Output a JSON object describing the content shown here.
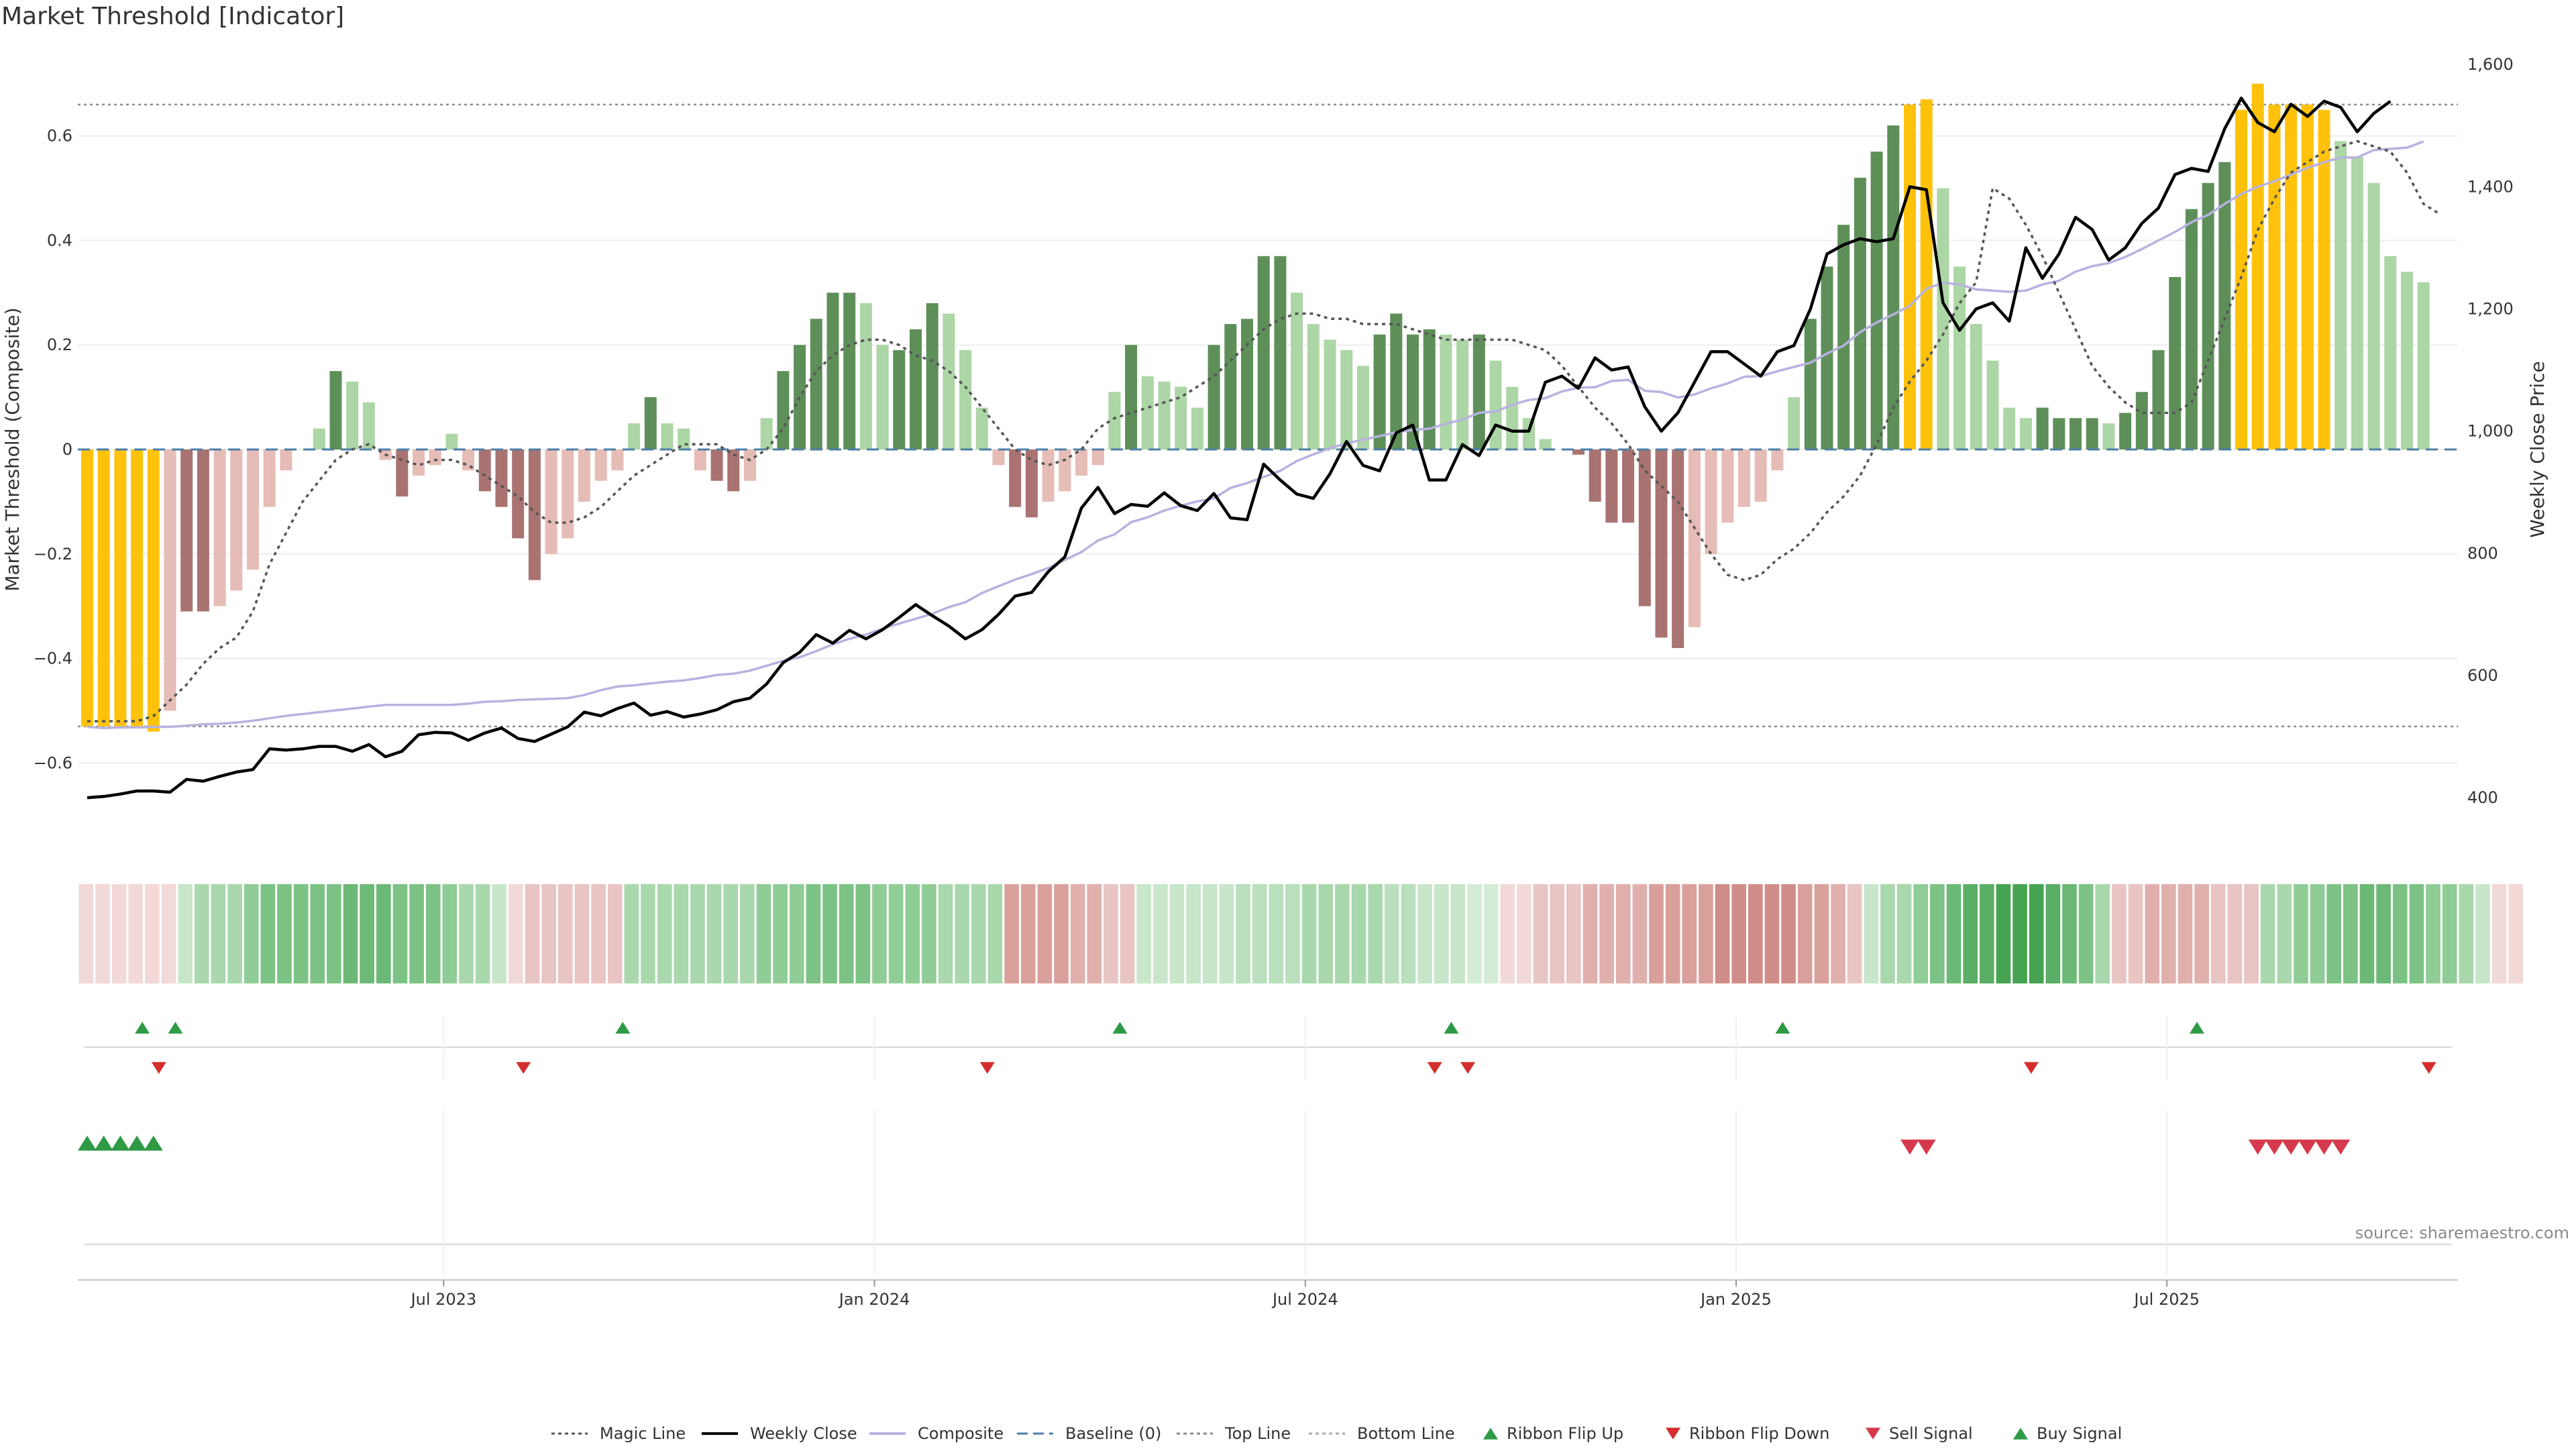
{
  "title": "Market Threshold [Indicator]",
  "source": "source: sharemaestro.com",
  "chart_data": {
    "type": "bar",
    "title": "Market Threshold [Indicator]",
    "ylabel_left": "Market Threshold (Composite)",
    "ylabel_right": "Weekly Close Price",
    "ylim_left": [
      -0.76,
      0.76
    ],
    "ylim_right": [
      320,
      1620
    ],
    "y_ticks_left": [
      0.6,
      0.4,
      0.2,
      0,
      -0.2,
      -0.4,
      -0.6
    ],
    "y_tick_labels_left": [
      "0.6",
      "0.4",
      "0.2",
      "0",
      "−0.2",
      "−0.4",
      "−0.6"
    ],
    "y_ticks_right": [
      1600,
      1400,
      1200,
      1000,
      800,
      600,
      400
    ],
    "y_tick_labels_right": [
      "1,600",
      "1,400",
      "1,200",
      "1,000",
      "800",
      "600",
      "400"
    ],
    "x_tick_labels": [
      "Jul 2023",
      "Jan 2024",
      "Jul 2024",
      "Jan 2025",
      "Jul 2025"
    ],
    "x_tick_weeks": [
      22,
      48,
      74,
      100,
      126
    ],
    "top_line": 0.66,
    "bottom_line": -0.53,
    "composite_bars": [
      -0.53,
      -0.53,
      -0.53,
      -0.53,
      -0.54,
      -0.5,
      -0.31,
      -0.31,
      -0.3,
      -0.27,
      -0.23,
      -0.11,
      -0.04,
      0,
      0.04,
      0.15,
      0.13,
      0.09,
      -0.02,
      -0.09,
      -0.05,
      -0.03,
      0.03,
      -0.04,
      -0.08,
      -0.11,
      -0.17,
      -0.25,
      -0.2,
      -0.17,
      -0.1,
      -0.06,
      -0.04,
      0.05,
      0.1,
      0.05,
      0.04,
      -0.04,
      -0.06,
      -0.08,
      -0.06,
      0.06,
      0.15,
      0.2,
      0.25,
      0.3,
      0.3,
      0.28,
      0.2,
      0.19,
      0.23,
      0.28,
      0.26,
      0.19,
      0.08,
      -0.03,
      -0.11,
      -0.13,
      -0.1,
      -0.08,
      -0.05,
      -0.03,
      0.11,
      0.2,
      0.14,
      0.13,
      0.12,
      0.08,
      0.2,
      0.24,
      0.25,
      0.37,
      0.37,
      0.3,
      0.24,
      0.21,
      0.19,
      0.16,
      0.22,
      0.26,
      0.22,
      0.23,
      0.22,
      0.21,
      0.22,
      0.17,
      0.12,
      0.06,
      0.02,
      0,
      -0.01,
      -0.1,
      -0.14,
      -0.14,
      -0.3,
      -0.36,
      -0.38,
      -0.34,
      -0.2,
      -0.14,
      -0.11,
      -0.1,
      -0.04,
      0.1,
      0.25,
      0.35,
      0.43,
      0.52,
      0.57,
      0.62,
      0.66,
      0.67,
      0.5,
      0.35,
      0.24,
      0.17,
      0.08,
      0.06,
      0.08,
      0.06,
      0.06,
      0.06,
      0.05,
      0.07,
      0.11,
      0.19,
      0.33,
      0.46,
      0.51,
      0.55,
      0.65,
      0.7,
      0.66,
      0.66,
      0.66,
      0.65,
      0.59,
      0.56,
      0.51,
      0.37,
      0.34,
      0.32
    ],
    "bar_state": [
      "y",
      "y",
      "y",
      "y",
      "y",
      "l",
      "d",
      "d",
      "l",
      "l",
      "l",
      "l",
      "l",
      "l",
      "l",
      "d",
      "l",
      "l",
      "l",
      "d",
      "l",
      "l",
      "l",
      "l",
      "d",
      "d",
      "d",
      "d",
      "l",
      "l",
      "l",
      "l",
      "l",
      "l",
      "d",
      "l",
      "l",
      "l",
      "d",
      "d",
      "l",
      "l",
      "d",
      "d",
      "d",
      "d",
      "d",
      "l",
      "l",
      "d",
      "d",
      "d",
      "l",
      "l",
      "l",
      "l",
      "d",
      "d",
      "l",
      "l",
      "l",
      "l",
      "l",
      "d",
      "l",
      "l",
      "l",
      "l",
      "d",
      "d",
      "d",
      "d",
      "d",
      "l",
      "l",
      "l",
      "l",
      "l",
      "d",
      "d",
      "d",
      "d",
      "l",
      "l",
      "d",
      "l",
      "l",
      "l",
      "l",
      "l",
      "d",
      "d",
      "d",
      "d",
      "d",
      "d",
      "d",
      "l",
      "l",
      "l",
      "l",
      "l",
      "l",
      "l",
      "d",
      "d",
      "d",
      "d",
      "d",
      "d",
      "y",
      "y",
      "l",
      "l",
      "l",
      "l",
      "l",
      "l",
      "d",
      "d",
      "d",
      "d",
      "l",
      "d",
      "d",
      "d",
      "d",
      "d",
      "d",
      "d",
      "y",
      "y",
      "y",
      "y",
      "y",
      "y",
      "l",
      "l",
      "l",
      "l",
      "l",
      "l"
    ],
    "weekly_close": [
      400,
      402,
      406,
      411,
      411,
      409,
      430,
      427,
      435,
      442,
      446,
      480,
      478,
      480,
      484,
      484,
      476,
      487,
      467,
      476,
      503,
      507,
      506,
      494,
      506,
      514,
      497,
      492,
      504,
      516,
      540,
      534,
      546,
      555,
      535,
      541,
      532,
      537,
      544,
      557,
      563,
      586,
      621,
      638,
      667,
      653,
      674,
      660,
      675,
      695,
      716,
      698,
      681,
      660,
      675,
      700,
      730,
      736,
      770,
      794,
      874,
      908,
      865,
      880,
      877,
      899,
      878,
      870,
      898,
      858,
      855,
      946,
      920,
      897,
      890,
      930,
      983,
      944,
      935,
      997,
      1010,
      920,
      920,
      978,
      960,
      1010,
      1000,
      1000,
      1080,
      1090,
      1070,
      1120,
      1100,
      1105,
      1040,
      1000,
      1030,
      1080,
      1130,
      1130,
      1110,
      1090,
      1130,
      1140,
      1200,
      1290,
      1305,
      1315,
      1310,
      1315,
      1400,
      1395,
      1210,
      1165,
      1200,
      1210,
      1180,
      1300,
      1250,
      1290,
      1350,
      1330,
      1280,
      1300,
      1340,
      1365,
      1420,
      1430,
      1425,
      1495,
      1545,
      1505,
      1490,
      1535,
      1515,
      1540,
      1530,
      1490,
      1520,
      1540
    ],
    "composite_line": [
      516,
      514,
      515,
      515,
      516,
      516,
      518,
      520,
      521,
      523,
      526,
      530,
      534,
      537,
      540,
      543,
      546,
      549,
      552,
      552,
      552,
      552,
      552,
      554,
      557,
      558,
      560,
      561,
      562,
      563,
      568,
      576,
      582,
      584,
      587,
      590,
      592,
      596,
      601,
      603,
      608,
      616,
      624,
      630,
      640,
      651,
      660,
      667,
      677,
      685,
      693,
      701,
      712,
      720,
      735,
      746,
      757,
      766,
      776,
      789,
      802,
      821,
      831,
      851,
      859,
      870,
      878,
      885,
      890,
      907,
      915,
      925,
      935,
      951,
      962,
      972,
      980,
      986,
      992,
      998,
      1002,
      1004,
      1012,
      1019,
      1030,
      1032,
      1043,
      1051,
      1054,
      1065,
      1071,
      1072,
      1082,
      1084,
      1066,
      1064,
      1055,
      1060,
      1070,
      1078,
      1089,
      1090,
      1098,
      1105,
      1112,
      1127,
      1140,
      1162,
      1178,
      1191,
      1205,
      1233,
      1243,
      1240,
      1232,
      1230,
      1228,
      1230,
      1240,
      1246,
      1261,
      1270,
      1275,
      1285,
      1298,
      1312,
      1326,
      1342,
      1354,
      1372,
      1388,
      1400,
      1409,
      1420,
      1431,
      1440,
      1448,
      1448,
      1460,
      1462,
      1464,
      1474
    ],
    "magic_line": [
      -0.52,
      -0.52,
      -0.52,
      -0.52,
      -0.51,
      -0.48,
      -0.45,
      -0.41,
      -0.38,
      -0.36,
      -0.31,
      -0.22,
      -0.16,
      -0.1,
      -0.06,
      -0.02,
      0,
      0.01,
      -0.01,
      -0.02,
      -0.03,
      -0.02,
      -0.02,
      -0.03,
      -0.05,
      -0.07,
      -0.09,
      -0.12,
      -0.14,
      -0.14,
      -0.13,
      -0.11,
      -0.08,
      -0.05,
      -0.03,
      -0.01,
      0.01,
      0.01,
      0.01,
      -0.01,
      -0.02,
      0,
      0.04,
      0.1,
      0.15,
      0.18,
      0.2,
      0.21,
      0.21,
      0.2,
      0.18,
      0.17,
      0.15,
      0.12,
      0.08,
      0.04,
      0,
      -0.02,
      -0.03,
      -0.02,
      0,
      0.04,
      0.06,
      0.07,
      0.08,
      0.09,
      0.1,
      0.12,
      0.14,
      0.17,
      0.2,
      0.23,
      0.25,
      0.26,
      0.26,
      0.25,
      0.25,
      0.24,
      0.24,
      0.24,
      0.23,
      0.22,
      0.21,
      0.21,
      0.21,
      0.21,
      0.21,
      0.2,
      0.19,
      0.16,
      0.12,
      0.08,
      0.05,
      0.01,
      -0.04,
      -0.07,
      -0.1,
      -0.15,
      -0.2,
      -0.24,
      -0.25,
      -0.24,
      -0.21,
      -0.19,
      -0.16,
      -0.12,
      -0.09,
      -0.05,
      0.01,
      0.08,
      0.13,
      0.17,
      0.22,
      0.28,
      0.32,
      0.5,
      0.48,
      0.43,
      0.37,
      0.3,
      0.23,
      0.16,
      0.12,
      0.09,
      0.07,
      0.07,
      0.07,
      0.09,
      0.17,
      0.25,
      0.33,
      0.42,
      0.48,
      0.53,
      0.55,
      0.57,
      0.58,
      0.59,
      0.58,
      0.57,
      0.53,
      0.47,
      0.45
    ],
    "ribbon_weeks": 144,
    "ribbon_colors": [
      "#f2d9d8",
      "#f2d9d8",
      "#f2d9d8",
      "#f2d9d8",
      "#f2d9d8",
      "#f2d9d8",
      "#c8e6ca",
      "#a9d8ad",
      "#a9d8ad",
      "#a9d8ad",
      "#90cc96",
      "#7cc284",
      "#7cc284",
      "#7cc284",
      "#7cc284",
      "#7cc284",
      "#6cb975",
      "#6cb975",
      "#6cb975",
      "#7cc284",
      "#7cc284",
      "#7cc284",
      "#90cc96",
      "#a9d8ad",
      "#a9d8ad",
      "#c8e6ca",
      "#f2d9d8",
      "#e8c4c2",
      "#e8c4c2",
      "#e8c4c2",
      "#e8c4c2",
      "#e8c4c2",
      "#e8c4c2",
      "#a9d8ad",
      "#a9d8ad",
      "#a9d8ad",
      "#a9d8ad",
      "#a9d8ad",
      "#a9d8ad",
      "#a9d8ad",
      "#a9d8ad",
      "#90cc96",
      "#90cc96",
      "#90cc96",
      "#7cc284",
      "#7cc284",
      "#7cc284",
      "#7cc284",
      "#90cc96",
      "#90cc96",
      "#90cc96",
      "#90cc96",
      "#a9d8ad",
      "#a9d8ad",
      "#a9d8ad",
      "#a9d8ad",
      "#d9a09b",
      "#d9a09b",
      "#d9a09b",
      "#d9a09b",
      "#e0b0ac",
      "#e0b0ac",
      "#e8c4c2",
      "#e8c4c2",
      "#c8e6ca",
      "#c8e6ca",
      "#c8e6ca",
      "#c8e6ca",
      "#c8e6ca",
      "#c8e6ca",
      "#b9dfbc",
      "#b9dfbc",
      "#b9dfbc",
      "#b9dfbc",
      "#a9d8ad",
      "#a9d8ad",
      "#a9d8ad",
      "#a9d8ad",
      "#a9d8ad",
      "#b9dfbc",
      "#b9dfbc",
      "#c8e6ca",
      "#c8e6ca",
      "#c8e6ca",
      "#d4ecd6",
      "#d4ecd6",
      "#f2d9d8",
      "#f2d9d8",
      "#e8c4c2",
      "#e8c4c2",
      "#e8c4c2",
      "#e0b0ac",
      "#e0b0ac",
      "#e0b0ac",
      "#e0b0ac",
      "#d9a09b",
      "#d9a09b",
      "#d9a09b",
      "#d9a09b",
      "#d08d88",
      "#d08d88",
      "#d08d88",
      "#d08d88",
      "#d08d88",
      "#d9a09b",
      "#d9a09b",
      "#e0b0ac",
      "#e8c4c2",
      "#c8e6ca",
      "#a9d8ad",
      "#a9d8ad",
      "#90cc96",
      "#7cc284",
      "#6cb975",
      "#5aae65",
      "#5aae65",
      "#45a352",
      "#45a352",
      "#45a352",
      "#5aae65",
      "#6cb975",
      "#7cc284",
      "#a9d8ad",
      "#e8c4c2",
      "#e8c4c2",
      "#e0b0ac",
      "#e0b0ac",
      "#e0b0ac",
      "#e0b0ac",
      "#e8c4c2",
      "#e8c4c2",
      "#e8c4c2",
      "#a9d8ad",
      "#a9d8ad",
      "#90cc96",
      "#90cc96",
      "#7cc284",
      "#7cc284",
      "#6cb975",
      "#6cb975",
      "#7cc284",
      "#7cc284",
      "#90cc96",
      "#90cc96",
      "#a9d8ad",
      "#c8e6ca",
      "#f2d9d8",
      "#f2d9d8"
    ],
    "ribbon_flip_up_weeks": [
      3,
      5,
      32,
      62,
      82,
      102,
      127
    ],
    "ribbon_flip_down_weeks": [
      4,
      26,
      54,
      81,
      83,
      117,
      141
    ],
    "buy_signal_weeks": [
      0,
      1,
      2,
      3,
      4
    ],
    "sell_signal_weeks": [
      110,
      111,
      131,
      132,
      133,
      134,
      135,
      136
    ],
    "series": [
      {
        "name": "Magic Line",
        "color": "#555555",
        "style": "dotted"
      },
      {
        "name": "Weekly Close",
        "color": "#000000",
        "style": "solid"
      },
      {
        "name": "Composite",
        "color": "#b7b2df",
        "style": "solid"
      },
      {
        "name": "Baseline (0)",
        "color": "#4d7ea8",
        "style": "dashed"
      },
      {
        "name": "Top Line",
        "color": "#888888",
        "style": "dotted"
      },
      {
        "name": "Bottom Line",
        "color": "#888888",
        "style": "dotted"
      },
      {
        "name": "Ribbon Flip Up",
        "color": "#2e9a45",
        "style": "triangle-up"
      },
      {
        "name": "Ribbon Flip Down",
        "color": "#d42d2d",
        "style": "triangle-down"
      },
      {
        "name": "Sell Signal",
        "color": "#d6394d",
        "style": "triangle-down-large"
      },
      {
        "name": "Buy Signal",
        "color": "#2e9a45",
        "style": "triangle-up-large"
      }
    ],
    "colors": {
      "dark_green": "#5e8f59",
      "light_green": "#acd6a5",
      "dark_red": "#a97372",
      "light_red": "#e6bcb6",
      "yellow": "#ffc20a"
    },
    "legend_position": "bottom-center",
    "grid": true
  }
}
